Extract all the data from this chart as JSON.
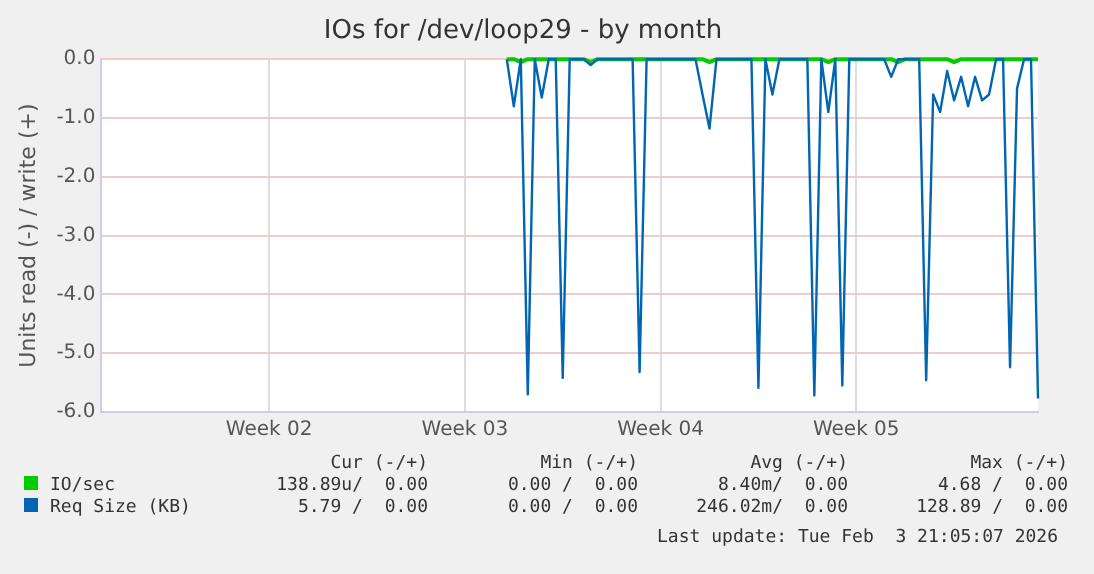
{
  "chart_data": {
    "type": "line",
    "title": "IOs for /dev/loop29 - by month",
    "ylabel": "Units read (-) / write (+)",
    "categories": [
      null,
      null,
      null,
      null,
      null,
      null,
      null,
      null,
      null,
      null,
      null,
      null,
      null,
      null,
      null,
      null,
      null,
      null,
      null,
      null,
      null,
      null,
      null,
      null,
      "Week 02",
      null,
      null,
      null,
      null,
      null,
      null,
      null,
      null,
      null,
      null,
      null,
      null,
      null,
      null,
      null,
      null,
      null,
      null,
      null,
      null,
      null,
      null,
      null,
      null,
      null,
      null,
      null,
      "Week 03",
      null,
      null,
      null,
      null,
      null,
      null,
      null,
      null,
      null,
      null,
      null,
      null,
      null,
      null,
      null,
      null,
      null,
      null,
      null,
      null,
      null,
      null,
      null,
      null,
      null,
      null,
      null,
      "Week 04",
      null,
      null,
      null,
      null,
      null,
      null,
      null,
      null,
      null,
      null,
      null,
      null,
      null,
      null,
      null,
      null,
      null,
      null,
      null,
      null,
      null,
      null,
      null,
      null,
      null,
      null,
      null,
      "Week 05",
      null,
      null,
      null,
      null,
      null,
      null,
      null,
      null,
      null,
      null,
      null,
      null,
      null,
      null,
      null,
      null,
      null,
      null,
      null,
      null,
      null,
      null,
      null,
      null,
      null,
      null
    ],
    "ylim": [
      -6,
      0
    ],
    "yticks": [
      {
        "value": -6,
        "label": "-6.0"
      },
      {
        "value": -5,
        "label": "-5.0"
      },
      {
        "value": -4,
        "label": "-4.0"
      },
      {
        "value": -3,
        "label": "-3.0"
      },
      {
        "value": -2,
        "label": "-2.0"
      },
      {
        "value": -1,
        "label": "-1.0"
      },
      {
        "value": 0,
        "label": "0.0"
      }
    ],
    "grid": true,
    "legend": "bottom",
    "marker": "none",
    "line_style": "solid",
    "series": [
      {
        "name": "IO/sec",
        "color": "#00cc00",
        "values": [
          null,
          null,
          null,
          null,
          null,
          null,
          null,
          null,
          null,
          null,
          null,
          null,
          null,
          null,
          null,
          null,
          null,
          null,
          null,
          null,
          null,
          null,
          null,
          null,
          null,
          null,
          null,
          null,
          null,
          null,
          null,
          null,
          null,
          null,
          null,
          null,
          null,
          null,
          null,
          null,
          null,
          null,
          null,
          null,
          null,
          null,
          null,
          null,
          null,
          null,
          null,
          null,
          null,
          null,
          null,
          null,
          null,
          null,
          0,
          0,
          -0.05,
          0,
          0,
          0,
          0,
          0,
          0,
          0,
          0,
          0,
          -0.05,
          0,
          0,
          0,
          0,
          0,
          0,
          0,
          0,
          0,
          0,
          0,
          0,
          0,
          0,
          0,
          0,
          -0.05,
          0,
          0,
          0,
          0,
          0,
          0,
          0,
          0,
          0,
          0,
          0,
          0,
          0,
          0,
          0,
          0,
          -0.05,
          0,
          0,
          0,
          0,
          0,
          0,
          0,
          0,
          0,
          -0.05,
          0,
          0,
          0,
          0,
          0,
          0,
          0,
          -0.05,
          0,
          0,
          0,
          0,
          0,
          0,
          0,
          0,
          0,
          0,
          0,
          0
        ]
      },
      {
        "name": "Req Size (KB)",
        "color": "#0066b3",
        "values": [
          null,
          null,
          null,
          null,
          null,
          null,
          null,
          null,
          null,
          null,
          null,
          null,
          null,
          null,
          null,
          null,
          null,
          null,
          null,
          null,
          null,
          null,
          null,
          null,
          null,
          null,
          null,
          null,
          null,
          null,
          null,
          null,
          null,
          null,
          null,
          null,
          null,
          null,
          null,
          null,
          null,
          null,
          null,
          null,
          null,
          null,
          null,
          null,
          null,
          null,
          null,
          null,
          null,
          null,
          null,
          null,
          null,
          null,
          0,
          -0.8,
          0,
          -5.7,
          0,
          -0.65,
          0,
          0,
          -5.42,
          0,
          0,
          0,
          -0.1,
          0,
          0,
          0,
          0,
          0,
          0,
          -5.32,
          0,
          0,
          0,
          0,
          0,
          0,
          0,
          0,
          -0.6,
          -1.18,
          0,
          0,
          0,
          0,
          0,
          0,
          -5.59,
          0,
          -0.6,
          0,
          0,
          0,
          0,
          0,
          -5.72,
          0,
          -0.9,
          0,
          -5.55,
          0,
          0,
          0,
          0,
          0,
          0,
          -0.3,
          0,
          0,
          0,
          0,
          -5.46,
          -0.6,
          -0.9,
          -0.2,
          -0.7,
          -0.3,
          -0.8,
          -0.3,
          -0.7,
          -0.6,
          0,
          0,
          -5.24,
          -0.5,
          0,
          0,
          -5.77
        ]
      }
    ],
    "annotations": [
      "Cur (-/+)",
      "Min (-/+)",
      "Avg (-/+)",
      "Max (-/+)",
      "138.89u/  0.00",
      "0.00 /  0.00",
      "8.40m/  0.00",
      "4.68 /  0.00",
      "5.79 /  0.00",
      "0.00 /  0.00",
      "246.02m/  0.00",
      "128.89 /  0.00",
      "Last update: Tue Feb  3 21:05:07 2026"
    ]
  }
}
